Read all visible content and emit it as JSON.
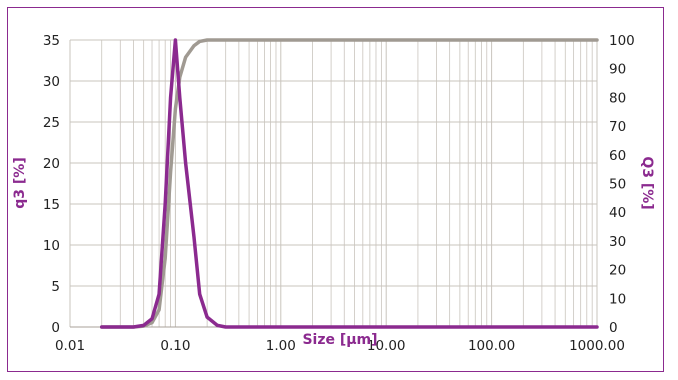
{
  "chart_data": {
    "type": "line",
    "xlabel": "Size [µm]",
    "ylabel": "q3 [%]",
    "y2label": "Q3 [%]",
    "xscale": "log",
    "xlim": [
      0.01,
      1000
    ],
    "ylim": [
      0,
      35
    ],
    "y2lim": [
      0,
      100
    ],
    "grid": true,
    "x_ticks": [
      "0.01",
      "0.10",
      "1.00",
      "10.00",
      "100.00",
      "1000.00"
    ],
    "y_ticks": [
      "0",
      "5",
      "10",
      "15",
      "20",
      "25",
      "30",
      "35"
    ],
    "y2_ticks": [
      "0",
      "10",
      "20",
      "30",
      "40",
      "50",
      "60",
      "70",
      "80",
      "90",
      "100"
    ],
    "series": [
      {
        "axis": "left",
        "color": "#8b2a8f",
        "x": [
          0.02,
          0.04,
          0.05,
          0.06,
          0.07,
          0.08,
          0.09,
          0.1,
          0.11,
          0.125,
          0.15,
          0.17,
          0.2,
          0.25,
          0.3,
          1,
          10,
          100,
          1000
        ],
        "y": [
          0,
          0,
          0.2,
          1.0,
          4.0,
          15.0,
          28.0,
          35.0,
          28.0,
          20.0,
          11.0,
          4.0,
          1.2,
          0.2,
          0,
          0,
          0,
          0,
          0
        ]
      },
      {
        "axis": "right",
        "color": "#a09a92",
        "x": [
          0.02,
          0.04,
          0.05,
          0.06,
          0.07,
          0.08,
          0.09,
          0.1,
          0.11,
          0.125,
          0.15,
          0.17,
          0.2,
          0.25,
          0.3,
          1,
          10,
          100,
          1000
        ],
        "y": [
          0,
          0,
          0.3,
          1.5,
          6.0,
          24.0,
          54.0,
          76.0,
          87.0,
          94.0,
          98.0,
          99.5,
          100,
          100,
          100,
          100,
          100,
          100,
          100
        ]
      }
    ]
  },
  "colors": {
    "frame": "#8b2a8f",
    "axis_title": "#8b2a8f",
    "grid": "#c9c4bd",
    "text": "#222222"
  }
}
